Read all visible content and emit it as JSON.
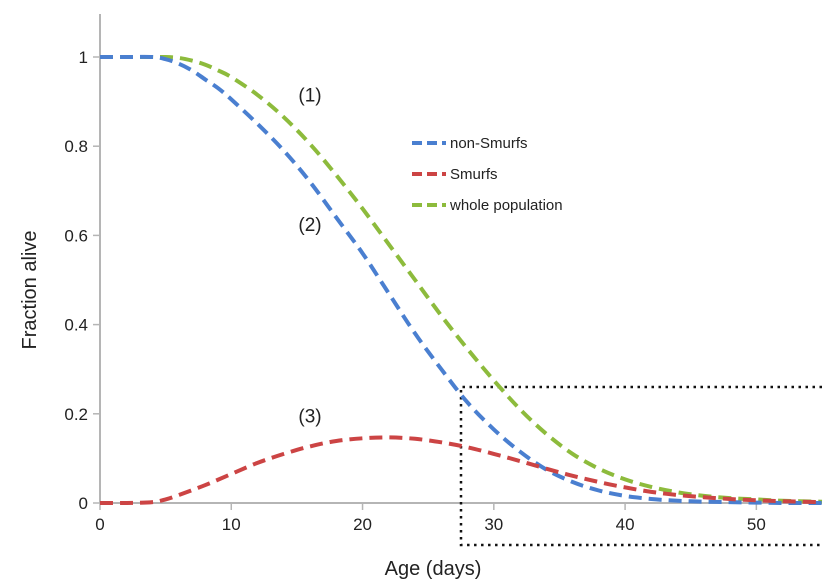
{
  "chart_data": {
    "type": "line",
    "xlabel": "Age (days)",
    "ylabel": "Fraction alive",
    "xlim": [
      0,
      55
    ],
    "ylim": [
      0,
      1.05
    ],
    "x_ticks": [
      0,
      10,
      20,
      30,
      40,
      50
    ],
    "y_ticks": [
      0,
      0.2,
      0.4,
      0.6,
      0.8,
      1
    ],
    "x_tick_labels": [
      "0",
      "10",
      "20",
      "30",
      "40",
      "50"
    ],
    "y_tick_labels": [
      "0",
      "0.2",
      "0.4",
      "0.6",
      "0.8",
      "1"
    ],
    "grid": false,
    "legend_position": "top-right",
    "series": [
      {
        "name": "non-Smurfs",
        "color": "#4a7fd0",
        "line_style": "dashed",
        "x": [
          0,
          2,
          4,
          5,
          6,
          7,
          8,
          9,
          10,
          12,
          14,
          16,
          18,
          20,
          22,
          24,
          26,
          28,
          30,
          32,
          34,
          36,
          38,
          40,
          42,
          44,
          46,
          48,
          50,
          52,
          55
        ],
        "y": [
          1.0,
          1.0,
          1.0,
          0.995,
          0.985,
          0.97,
          0.95,
          0.93,
          0.905,
          0.85,
          0.79,
          0.72,
          0.64,
          0.56,
          0.47,
          0.38,
          0.3,
          0.225,
          0.165,
          0.115,
          0.075,
          0.047,
          0.028,
          0.016,
          0.009,
          0.005,
          0.003,
          0.002,
          0.001,
          0.0,
          0.0
        ]
      },
      {
        "name": "Smurfs",
        "color": "#cc4444",
        "line_style": "dashed",
        "x": [
          0,
          2,
          4,
          5,
          6,
          8,
          10,
          12,
          14,
          16,
          18,
          20,
          22,
          24,
          26,
          28,
          30,
          32,
          34,
          36,
          38,
          40,
          42,
          44,
          46,
          48,
          50,
          52,
          55
        ],
        "y": [
          0.0,
          0.0,
          0.002,
          0.008,
          0.018,
          0.04,
          0.065,
          0.09,
          0.11,
          0.127,
          0.139,
          0.145,
          0.147,
          0.144,
          0.136,
          0.125,
          0.11,
          0.094,
          0.077,
          0.061,
          0.047,
          0.035,
          0.025,
          0.018,
          0.013,
          0.009,
          0.006,
          0.004,
          0.002
        ]
      },
      {
        "name": "whole population",
        "color": "#8dbb3c",
        "line_style": "dashed",
        "x": [
          0,
          2,
          4,
          5,
          6,
          7,
          8,
          9,
          10,
          12,
          14,
          16,
          18,
          20,
          22,
          24,
          26,
          28,
          30,
          32,
          34,
          36,
          38,
          40,
          42,
          44,
          46,
          48,
          50,
          52,
          55
        ],
        "y": [
          1.0,
          1.0,
          1.0,
          1.0,
          0.998,
          0.992,
          0.983,
          0.97,
          0.955,
          0.915,
          0.865,
          0.805,
          0.735,
          0.66,
          0.58,
          0.5,
          0.42,
          0.345,
          0.275,
          0.21,
          0.155,
          0.11,
          0.077,
          0.053,
          0.036,
          0.024,
          0.016,
          0.011,
          0.008,
          0.005,
          0.003
        ]
      }
    ],
    "annotations": [
      {
        "text": "(1)",
        "x": 16,
        "y": 0.9
      },
      {
        "text": "(2)",
        "x": 16,
        "y": 0.61
      },
      {
        "text": "(3)",
        "x": 16,
        "y": 0.18
      }
    ],
    "dotted_box": {
      "x_min": 27.5,
      "x_max": 55,
      "y_min": -0.1,
      "y_max": 0.26
    }
  }
}
